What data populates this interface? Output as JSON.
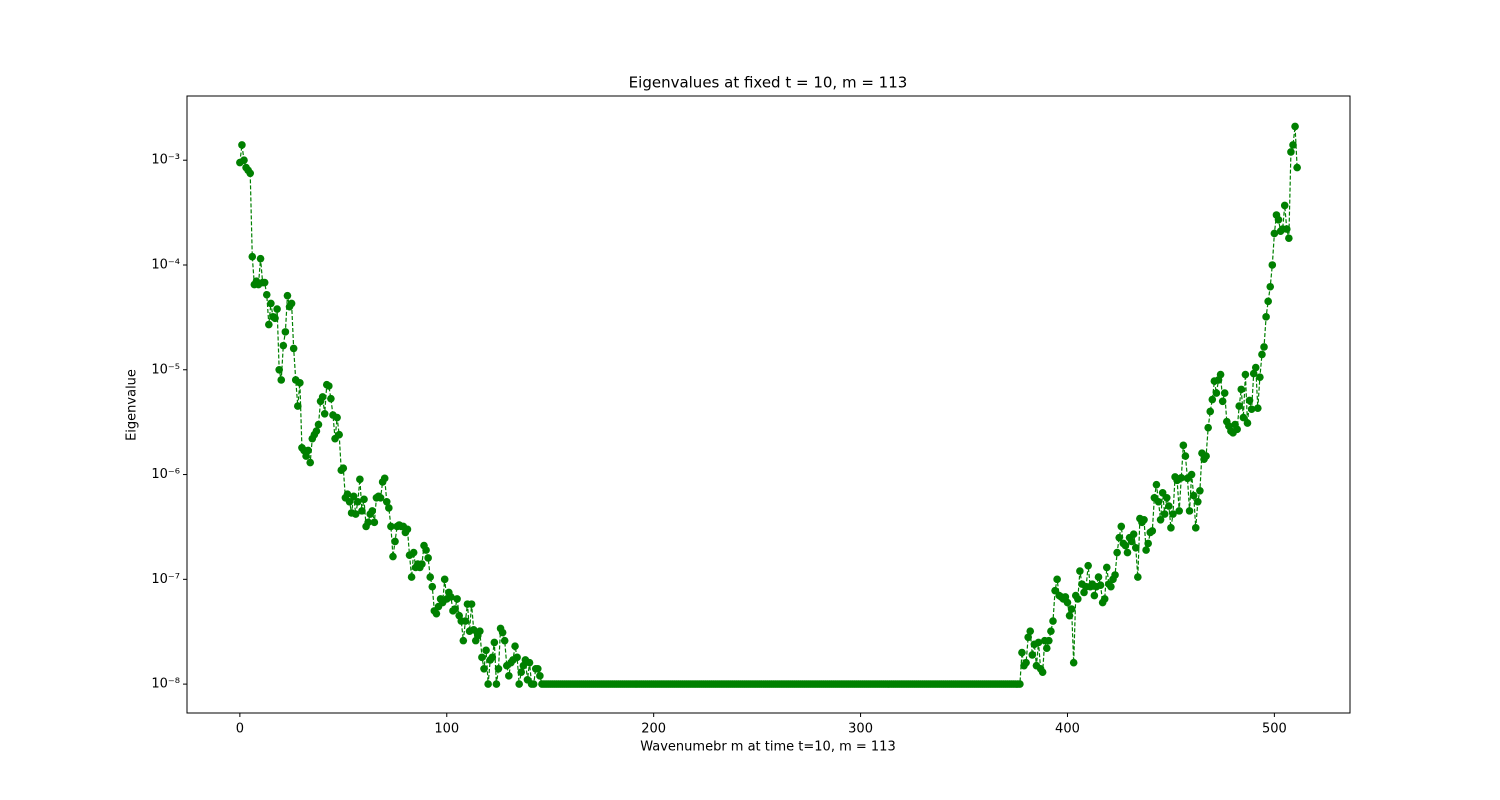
{
  "chart_data": {
    "type": "line",
    "title": "Eigenvalues at fixed t = 10, m = 113",
    "x_label": "Wavenumebr m at time t=10, m = 113",
    "y_label": "Eigenvalue",
    "log_y": true,
    "xlim": [
      -25.55,
      536.55
    ],
    "xticks": [
      0,
      100,
      200,
      300,
      400,
      500
    ],
    "ylim": [
      5.3e-09,
      0.0041
    ],
    "yticks": [
      {
        "value": 1e-08,
        "label": "10⁻⁸"
      },
      {
        "value": 1e-07,
        "label": "10⁻⁷"
      },
      {
        "value": 1e-06,
        "label": "10⁻⁶"
      },
      {
        "value": 1e-05,
        "label": "10⁻⁵"
      },
      {
        "value": 0.0001,
        "label": "10⁻⁴"
      },
      {
        "value": 0.001,
        "label": "10⁻³"
      }
    ],
    "x": [
      0,
      1,
      2,
      3,
      4,
      5,
      6,
      7,
      8,
      9,
      10,
      11,
      12,
      13,
      14,
      15,
      16,
      17,
      18,
      19,
      20,
      21,
      22,
      23,
      24,
      25,
      26,
      27,
      28,
      29,
      30,
      31,
      32,
      33,
      34,
      35,
      36,
      37,
      38,
      39,
      40,
      41,
      42,
      43,
      44,
      45,
      46,
      47,
      48,
      49,
      50,
      51,
      52,
      53,
      54,
      55,
      56,
      57,
      58,
      59,
      60,
      61,
      62,
      63,
      64,
      65,
      66,
      67,
      68,
      69,
      70,
      71,
      72,
      73,
      74,
      75,
      76,
      77,
      78,
      79,
      80,
      81,
      82,
      83,
      84,
      85,
      86,
      87,
      88,
      89,
      90,
      91,
      92,
      93,
      94,
      95,
      96,
      97,
      98,
      99,
      100,
      101,
      102,
      103,
      104,
      105,
      106,
      107,
      108,
      109,
      110,
      111,
      112,
      113,
      114,
      115,
      116,
      117,
      118,
      119,
      120,
      121,
      122,
      123,
      124,
      125,
      126,
      127,
      128,
      129,
      130,
      131,
      132,
      133,
      134,
      135,
      136,
      137,
      138,
      139,
      140,
      141,
      142,
      143,
      144,
      145,
      146,
      147,
      148,
      149,
      150,
      151,
      152,
      153,
      154,
      155,
      156,
      157,
      158,
      159,
      160,
      161,
      162,
      163,
      164,
      165,
      166,
      167,
      168,
      169,
      170,
      171,
      172,
      173,
      174,
      175,
      176,
      177,
      178,
      179,
      180,
      181,
      182,
      183,
      184,
      185,
      186,
      187,
      188,
      189,
      190,
      191,
      192,
      193,
      194,
      195,
      196,
      197,
      198,
      199,
      200,
      201,
      202,
      203,
      204,
      205,
      206,
      207,
      208,
      209,
      210,
      211,
      212,
      213,
      214,
      215,
      216,
      217,
      218,
      219,
      220,
      221,
      222,
      223,
      224,
      225,
      226,
      227,
      228,
      229,
      230,
      231,
      232,
      233,
      234,
      235,
      236,
      237,
      238,
      239,
      240,
      241,
      242,
      243,
      244,
      245,
      246,
      247,
      248,
      249,
      250,
      251,
      252,
      253,
      254,
      255,
      256,
      257,
      258,
      259,
      260,
      261,
      262,
      263,
      264,
      265,
      266,
      267,
      268,
      269,
      270,
      271,
      272,
      273,
      274,
      275,
      276,
      277,
      278,
      279,
      280,
      281,
      282,
      283,
      284,
      285,
      286,
      287,
      288,
      289,
      290,
      291,
      292,
      293,
      294,
      295,
      296,
      297,
      298,
      299,
      300,
      301,
      302,
      303,
      304,
      305,
      306,
      307,
      308,
      309,
      310,
      311,
      312,
      313,
      314,
      315,
      316,
      317,
      318,
      319,
      320,
      321,
      322,
      323,
      324,
      325,
      326,
      327,
      328,
      329,
      330,
      331,
      332,
      333,
      334,
      335,
      336,
      337,
      338,
      339,
      340,
      341,
      342,
      343,
      344,
      345,
      346,
      347,
      348,
      349,
      350,
      351,
      352,
      353,
      354,
      355,
      356,
      357,
      358,
      359,
      360,
      361,
      362,
      363,
      364,
      365,
      366,
      367,
      368,
      369,
      370,
      371,
      372,
      373,
      374,
      375,
      376,
      377,
      378,
      379,
      380,
      381,
      382,
      383,
      384,
      385,
      386,
      387,
      388,
      389,
      390,
      391,
      392,
      393,
      394,
      395,
      396,
      397,
      398,
      399,
      400,
      401,
      402,
      403,
      404,
      405,
      406,
      407,
      408,
      409,
      410,
      411,
      412,
      413,
      414,
      415,
      416,
      417,
      418,
      419,
      420,
      421,
      422,
      423,
      424,
      425,
      426,
      427,
      428,
      429,
      430,
      431,
      432,
      433,
      434,
      435,
      436,
      437,
      438,
      439,
      440,
      441,
      442,
      443,
      444,
      445,
      446,
      447,
      448,
      449,
      450,
      451,
      452,
      453,
      454,
      455,
      456,
      457,
      458,
      459,
      460,
      461,
      462,
      463,
      464,
      465,
      466,
      467,
      468,
      469,
      470,
      471,
      472,
      473,
      474,
      475,
      476,
      477,
      478,
      479,
      480,
      481,
      482,
      483,
      484,
      485,
      486,
      487,
      488,
      489,
      490,
      491,
      492,
      493,
      494,
      495,
      496,
      497,
      498,
      499,
      500,
      501,
      502,
      503,
      504,
      505,
      506,
      507,
      508,
      509,
      510,
      511
    ],
    "series": [
      {
        "color": "#008000",
        "values": [
          0.00095,
          0.0014,
          0.001,
          0.00085,
          0.0008,
          0.00075,
          0.00012,
          6.5e-05,
          7e-05,
          6.5e-05,
          0.000115,
          6.8e-05,
          6.8e-05,
          5.2e-05,
          2.7e-05,
          4.3e-05,
          3.2e-05,
          3.1e-05,
          3.8e-05,
          1e-05,
          8e-06,
          1.7e-05,
          2.3e-05,
          5.1e-05,
          4e-05,
          4.3e-05,
          1.6e-05,
          8e-06,
          4.5e-06,
          7.5e-06,
          1.8e-06,
          1.7e-06,
          1.5e-06,
          1.7e-06,
          1.3e-06,
          2.2e-06,
          2.4e-06,
          2.6e-06,
          3e-06,
          5e-06,
          5.5e-06,
          3.8e-06,
          7.2e-06,
          7e-06,
          5.3e-06,
          3.7e-06,
          2.2e-06,
          3.5e-06,
          2.4e-06,
          1.1e-06,
          1.15e-06,
          6e-07,
          6.5e-07,
          5.5e-07,
          4.3e-07,
          6.2e-07,
          4.2e-07,
          5.5e-07,
          9e-07,
          4.5e-07,
          5.8e-07,
          3.2e-07,
          3.5e-07,
          4.2e-07,
          4.5e-07,
          3.5e-07,
          6e-07,
          6.2e-07,
          6e-07,
          8.5e-07,
          9.2e-07,
          5.5e-07,
          4.8e-07,
          3.2e-07,
          1.65e-07,
          2.3e-07,
          3.2e-07,
          3.3e-07,
          3.2e-07,
          3.2e-07,
          2.8e-07,
          3e-07,
          1.7e-07,
          1.05e-07,
          1.8e-07,
          1.3e-07,
          1.4e-07,
          1.3e-07,
          1.4e-07,
          2.1e-07,
          1.9e-07,
          1.6e-07,
          1.05e-07,
          8.5e-08,
          5e-08,
          4.7e-08,
          5.5e-08,
          6.5e-08,
          6e-08,
          1e-07,
          6.5e-08,
          7.5e-08,
          6.8e-08,
          5e-08,
          5.2e-08,
          6.5e-08,
          4.5e-08,
          4e-08,
          2.6e-08,
          4e-08,
          5.8e-08,
          3.2e-08,
          5.8e-08,
          3.3e-08,
          2.6e-08,
          2.9e-08,
          3.2e-08,
          1.8e-08,
          1.4e-08,
          2.1e-08,
          1e-08,
          1.7e-08,
          1.8e-08,
          2.5e-08,
          1e-08,
          1.4e-08,
          3.4e-08,
          3.1e-08,
          2.6e-08,
          1.5e-08,
          1.2e-08,
          1.6e-08,
          1.7e-08,
          2.3e-08,
          1.8e-08,
          1e-08,
          1.3e-08,
          1.5e-08,
          1.7e-08,
          1.1e-08,
          1.6e-08,
          1e-08,
          1e-08,
          1.4e-08,
          1.4e-08,
          1.2e-08,
          1e-08,
          1e-08,
          1e-08,
          1e-08,
          1e-08,
          1e-08,
          1e-08,
          1e-08,
          1e-08,
          1e-08,
          1e-08,
          1e-08,
          1e-08,
          1e-08,
          1e-08,
          1e-08,
          1e-08,
          1e-08,
          1e-08,
          1e-08,
          1e-08,
          1e-08,
          1e-08,
          1e-08,
          1e-08,
          1e-08,
          1e-08,
          1e-08,
          1e-08,
          1e-08,
          1e-08,
          1e-08,
          1e-08,
          1e-08,
          1e-08,
          1e-08,
          1e-08,
          1e-08,
          1e-08,
          1e-08,
          1e-08,
          1e-08,
          1e-08,
          1e-08,
          1e-08,
          1e-08,
          1e-08,
          1e-08,
          1e-08,
          1e-08,
          1e-08,
          1e-08,
          1e-08,
          1e-08,
          1e-08,
          1e-08,
          1e-08,
          1e-08,
          1e-08,
          1e-08,
          1e-08,
          1e-08,
          1e-08,
          1e-08,
          1e-08,
          1e-08,
          1e-08,
          1e-08,
          1e-08,
          1e-08,
          1e-08,
          1e-08,
          1e-08,
          1e-08,
          1e-08,
          1e-08,
          1e-08,
          1e-08,
          1e-08,
          1e-08,
          1e-08,
          1e-08,
          1e-08,
          1e-08,
          1e-08,
          1e-08,
          1e-08,
          1e-08,
          1e-08,
          1e-08,
          1e-08,
          1e-08,
          1e-08,
          1e-08,
          1e-08,
          1e-08,
          1e-08,
          1e-08,
          1e-08,
          1e-08,
          1e-08,
          1e-08,
          1e-08,
          1e-08,
          1e-08,
          1e-08,
          1e-08,
          1e-08,
          1e-08,
          1e-08,
          1e-08,
          1e-08,
          1e-08,
          1e-08,
          1e-08,
          1e-08,
          1e-08,
          1e-08,
          1e-08,
          1e-08,
          1e-08,
          1e-08,
          1e-08,
          1e-08,
          1e-08,
          1e-08,
          1e-08,
          1e-08,
          1e-08,
          1e-08,
          1e-08,
          1e-08,
          1e-08,
          1e-08,
          1e-08,
          1e-08,
          1e-08,
          1e-08,
          1e-08,
          1e-08,
          1e-08,
          1e-08,
          1e-08,
          1e-08,
          1e-08,
          1e-08,
          1e-08,
          1e-08,
          1e-08,
          1e-08,
          1e-08,
          1e-08,
          1e-08,
          1e-08,
          1e-08,
          1e-08,
          1e-08,
          1e-08,
          1e-08,
          1e-08,
          1e-08,
          1e-08,
          1e-08,
          1e-08,
          1e-08,
          1e-08,
          1e-08,
          1e-08,
          1e-08,
          1e-08,
          1e-08,
          1e-08,
          1e-08,
          1e-08,
          1e-08,
          1e-08,
          1e-08,
          1e-08,
          1e-08,
          1e-08,
          1e-08,
          1e-08,
          1e-08,
          1e-08,
          1e-08,
          1e-08,
          1e-08,
          1e-08,
          1e-08,
          1e-08,
          1e-08,
          1e-08,
          1e-08,
          1e-08,
          1e-08,
          1e-08,
          1e-08,
          1e-08,
          1e-08,
          1e-08,
          1e-08,
          1e-08,
          1e-08,
          1e-08,
          1e-08,
          1e-08,
          1e-08,
          1e-08,
          1e-08,
          1e-08,
          1e-08,
          1e-08,
          1e-08,
          1e-08,
          1e-08,
          1e-08,
          1e-08,
          1e-08,
          1e-08,
          1e-08,
          1e-08,
          1e-08,
          1e-08,
          1e-08,
          1e-08,
          1e-08,
          1e-08,
          1e-08,
          1e-08,
          1e-08,
          1e-08,
          1e-08,
          2e-08,
          1.5e-08,
          1.6e-08,
          2.8e-08,
          3.2e-08,
          1.9e-08,
          2.4e-08,
          1.5e-08,
          2.5e-08,
          1.4e-08,
          1.3e-08,
          2.6e-08,
          2.2e-08,
          2.6e-08,
          3.2e-08,
          4e-08,
          7.8e-08,
          1e-07,
          7e-08,
          6.8e-08,
          6.5e-08,
          6.8e-08,
          6e-08,
          4.5e-08,
          5.2e-08,
          1.6e-08,
          7e-08,
          6.5e-08,
          1.2e-07,
          9e-08,
          7.5e-08,
          8.5e-08,
          1.35e-07,
          8.5e-08,
          9e-08,
          7e-08,
          8.5e-08,
          1.05e-07,
          8.8e-08,
          6e-08,
          6.5e-08,
          1.3e-07,
          9e-08,
          8.5e-08,
          1e-07,
          1.1e-07,
          1.8e-07,
          2.5e-07,
          3.2e-07,
          2.2e-07,
          2.1e-07,
          1.8e-07,
          2.5e-07,
          2.3e-07,
          2.7e-07,
          2e-07,
          1.05e-07,
          3.8e-07,
          3.5e-07,
          3.7e-07,
          1.9e-07,
          2.2e-07,
          2.8e-07,
          2.9e-07,
          6e-07,
          8e-07,
          5.5e-07,
          3.7e-07,
          6.7e-07,
          4.2e-07,
          6e-07,
          5e-07,
          3.1e-07,
          4.2e-07,
          9.5e-07,
          8.8e-07,
          4.5e-07,
          9.3e-07,
          1.9e-06,
          1.5e-06,
          9.2e-07,
          4.5e-07,
          1e-06,
          6.3e-07,
          3.1e-07,
          5.5e-07,
          7e-07,
          1.6e-06,
          1.4e-06,
          1.5e-06,
          2.8e-06,
          4e-06,
          5.2e-06,
          7.8e-06,
          6e-06,
          8e-06,
          9e-06,
          5e-06,
          6e-06,
          3.2e-06,
          2.9e-06,
          2.6e-06,
          2.5e-06,
          3e-06,
          2.7e-06,
          4.5e-06,
          6.5e-06,
          3.5e-06,
          9e-06,
          3.1e-06,
          5.1e-06,
          4.2e-06,
          9.2e-06,
          1.05e-05,
          4.3e-06,
          8.5e-06,
          1.4e-05,
          1.65e-05,
          3.2e-05,
          4.5e-05,
          6.2e-05,
          0.0001,
          0.0002,
          0.0003,
          0.00027,
          0.00021,
          0.00022,
          0.00037,
          0.00022,
          0.00018,
          0.0012,
          0.0014,
          0.0021,
          0.00085
        ]
      }
    ]
  }
}
